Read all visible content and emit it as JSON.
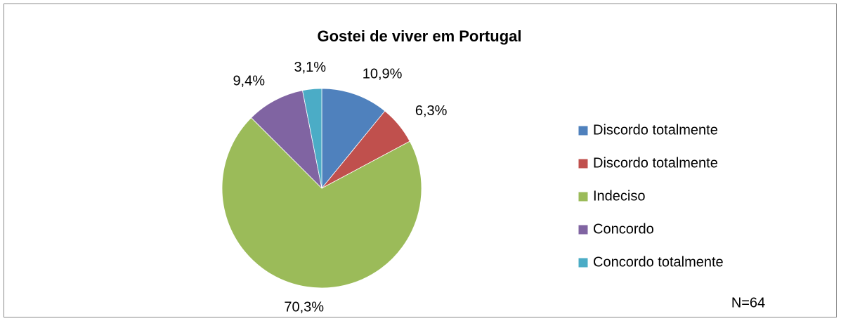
{
  "chart_data": {
    "type": "pie",
    "title": "Gostei de viver em Portugal",
    "categories": [
      "Discordo totalmente",
      "Discordo totalmente",
      "Indeciso",
      "Concordo",
      "Concordo totalmente"
    ],
    "values": [
      10.9,
      6.3,
      70.3,
      9.4,
      3.1
    ],
    "value_labels": [
      "10,9%",
      "6,3%",
      "70,3%",
      "9,4%",
      "3,1%"
    ],
    "colors": [
      "#4f81bd",
      "#c0504d",
      "#9bbb59",
      "#8064a2",
      "#4bacc6"
    ],
    "legend": "right",
    "annotation": "N=64"
  }
}
